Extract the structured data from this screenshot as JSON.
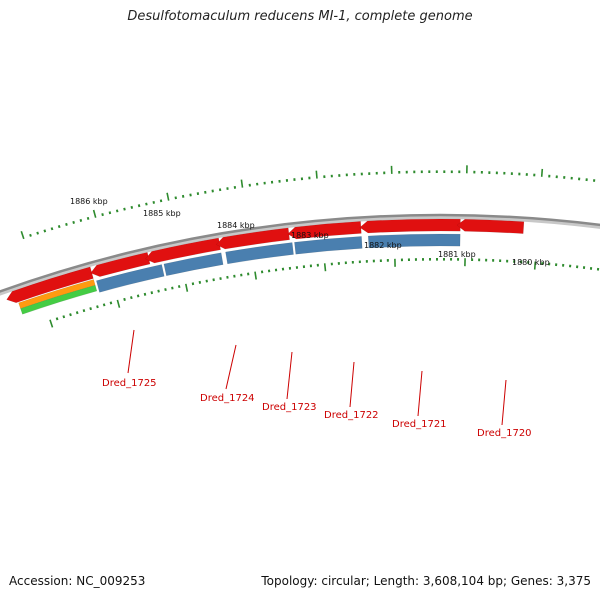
{
  "title": "Desulfotomaculum reducens MI-1, complete genome",
  "footer": {
    "accession": "Accession: NC_009253",
    "summary": "Topology: circular; Length: 3,608,104 bp; Genes: 3,375"
  },
  "colors": {
    "backbone": "#8a8a8a",
    "tick": "#2e8b2e",
    "cds_forward": "#e01010",
    "cds_reverse": "#4a7faf",
    "orange_track": "#ff9a10",
    "green_track": "#44cc44",
    "gene_label": "#cc0000"
  },
  "scale_labels": [
    "1886 kbp",
    "1885 kbp",
    "1884 kbp",
    "1883 kbp",
    "1882 kbp",
    "1881 kbp",
    "1880 kbp"
  ],
  "gene_labels": [
    "Dred_1725",
    "Dred_1724",
    "Dred_1723",
    "Dred_1722",
    "Dred_1721",
    "Dred_1720"
  ]
}
